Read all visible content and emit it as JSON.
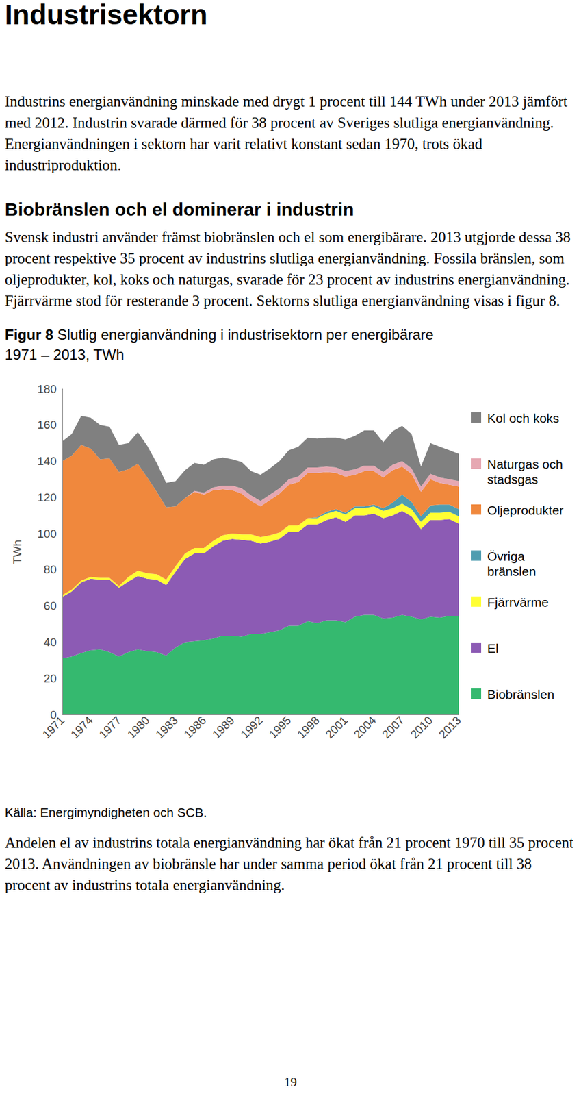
{
  "header": {
    "title": "Industrisektorn"
  },
  "intro": "Industrins energianvändning minskade med drygt 1 procent till 144 TWh under 2013 jämfört med 2012. Industrin svarade därmed för 38 procent av Sveriges slutliga energianvändning. Energianvändningen i sektorn har varit relativt konstant sedan 1970, trots ökad industriproduktion.",
  "section": {
    "heading": "Biobränslen och el dominerar i industrin",
    "text": "Svensk industri använder främst biobränslen och el som energibärare. 2013 utgjorde dessa 38 procent respektive 35 procent av industrins slutliga energianvändning. Fossila bränslen, som oljeprodukter, kol, koks och naturgas, svarade för 23 procent av industrins energianvändning. Fjärrvärme stod för resterande 3 procent. Sektorns slutliga energianvändning visas i figur 8."
  },
  "figure": {
    "label": "Figur 8",
    "caption": "Slutlig energianvändning i industrisektorn per energibärare 1971 – 2013, TWh",
    "source": "Källa: Energimyndigheten och SCB."
  },
  "chart_data": {
    "type": "area",
    "stacked": true,
    "y_label": "TWh",
    "x": [
      1971,
      1972,
      1973,
      1974,
      1975,
      1976,
      1977,
      1978,
      1979,
      1980,
      1981,
      1982,
      1983,
      1984,
      1985,
      1986,
      1987,
      1988,
      1989,
      1990,
      1991,
      1992,
      1993,
      1994,
      1995,
      1996,
      1997,
      1998,
      1999,
      2000,
      2001,
      2002,
      2003,
      2004,
      2005,
      2006,
      2007,
      2008,
      2009,
      2010,
      2011,
      2012,
      2013
    ],
    "xlim": [
      1971,
      2013
    ],
    "xticks": [
      1971,
      1974,
      1977,
      1980,
      1983,
      1986,
      1989,
      1992,
      1995,
      1998,
      2001,
      2004,
      2007,
      2010,
      2013
    ],
    "ylim": [
      0,
      180
    ],
    "yticks": [
      0,
      20,
      40,
      60,
      80,
      100,
      120,
      140,
      160,
      180
    ],
    "grid": false,
    "legend": "right",
    "series": [
      {
        "name": "Biobränslen",
        "color": "#35b96f",
        "values": [
          31,
          32,
          34,
          35.5,
          36,
          34.5,
          32,
          34.5,
          36,
          35,
          34.5,
          32.5,
          37,
          40,
          40.5,
          41,
          42,
          43.5,
          43.5,
          43,
          44.5,
          44.5,
          45.5,
          46.5,
          49,
          49,
          51.5,
          50.5,
          52,
          52,
          51,
          54,
          55,
          55,
          53,
          53.5,
          55,
          54,
          52.5,
          54,
          53.5,
          54.5,
          54.5
        ]
      },
      {
        "name": "El",
        "color": "#8c5bb4",
        "values": [
          34,
          36,
          39,
          39.5,
          38.5,
          40,
          38,
          39,
          40.5,
          40,
          40,
          39,
          42,
          46,
          48.5,
          48,
          51,
          52.5,
          53.5,
          53.5,
          51.5,
          50,
          50,
          50.5,
          52,
          52,
          53.5,
          54.5,
          55.5,
          57,
          55.5,
          56,
          55,
          56,
          55.5,
          56.5,
          57.5,
          55.5,
          50,
          53.5,
          54,
          53.5,
          51
        ]
      },
      {
        "name": "Fjärrvärme",
        "color": "#ffff33",
        "values": [
          1,
          1,
          1,
          1,
          1,
          1,
          1,
          2.5,
          3,
          3,
          3,
          3,
          3,
          3,
          3,
          3,
          3,
          3,
          3,
          3,
          3.5,
          3.5,
          3.5,
          3.5,
          3.5,
          3.5,
          3.5,
          3.5,
          3.5,
          3.5,
          4,
          4,
          4,
          4,
          4,
          4,
          4,
          4,
          4,
          4,
          4,
          4,
          4
        ]
      },
      {
        "name": "Övriga bränslen",
        "color": "#4f9db0",
        "values": [
          0,
          0,
          0,
          0,
          0,
          0,
          0,
          0,
          0,
          0,
          0,
          0,
          0,
          0,
          0,
          0,
          0,
          0,
          0,
          0,
          0,
          0,
          0,
          0,
          0,
          0,
          0,
          0.5,
          1,
          1,
          1,
          1,
          1,
          1,
          1.5,
          3,
          5,
          4,
          3,
          4,
          4.5,
          4,
          4
        ]
      },
      {
        "name": "Oljeprodukter",
        "color": "#f0883d",
        "values": [
          74,
          74,
          75,
          71,
          65.5,
          66,
          63,
          59.5,
          59,
          53,
          45.5,
          40,
          33,
          30.5,
          31,
          29.5,
          28,
          25.5,
          24,
          22.5,
          18.5,
          17,
          19.5,
          21.5,
          22.5,
          24,
          25,
          24.5,
          22,
          20,
          20,
          17.5,
          19.5,
          18.5,
          17,
          18,
          15.5,
          15.5,
          13.5,
          14.5,
          12,
          11,
          12.5
        ]
      },
      {
        "name": "Naturgas och stadsgas",
        "color": "#e6a8b2",
        "values": [
          0,
          0,
          0,
          0,
          0,
          0,
          0,
          0,
          0,
          0,
          0,
          0,
          0,
          0,
          0.5,
          1,
          1.5,
          2,
          2.5,
          3,
          3,
          3,
          3,
          3,
          3,
          3,
          3,
          3,
          3,
          3,
          3,
          3,
          3,
          3,
          3,
          3,
          3,
          3,
          3,
          3,
          3,
          3,
          3
        ]
      },
      {
        "name": "Kol och koks",
        "color": "#808080",
        "values": [
          11,
          12,
          16,
          17,
          19,
          17.5,
          15,
          14.5,
          17.5,
          17.5,
          16,
          13.5,
          14,
          15.5,
          15.5,
          15.5,
          15.5,
          15.5,
          14.5,
          14.5,
          13.5,
          14.5,
          14.5,
          15,
          16,
          16.5,
          16.5,
          16,
          16,
          16.5,
          17.5,
          18.5,
          19.5,
          19.5,
          16.5,
          18.5,
          19.5,
          19,
          11,
          17,
          17,
          16,
          15
        ]
      }
    ]
  },
  "closing": "Andelen el av industrins totala energianvändning har ökat från 21 procent 1970 till 35 procent 2013. Användningen av biobränsle har under samma period ökat från 21 procent till 38 procent av industrins totala energianvändning.",
  "page_number": "19"
}
